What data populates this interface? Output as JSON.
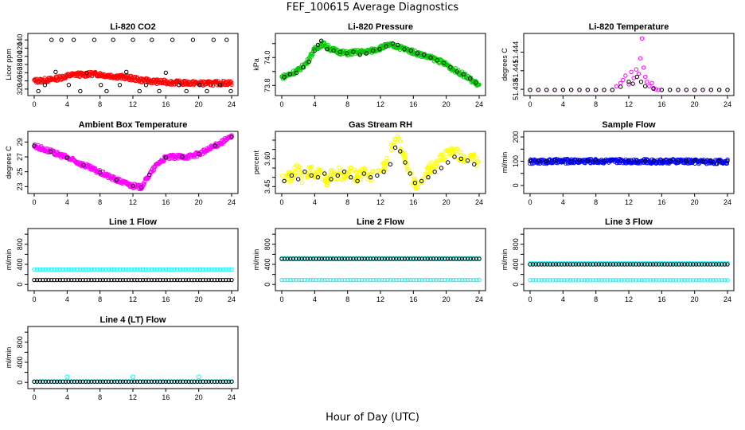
{
  "title": "FEF_100615  Average Diagnostics",
  "xlabel": "Hour of Day (UTC)",
  "chart_data": [
    {
      "type": "scatter",
      "title": "Li-820 CO2",
      "ylabel": "Licor ppm",
      "xlim": [
        0,
        24
      ],
      "ylim": [
        312,
        448
      ],
      "xticks": [
        0,
        4,
        8,
        12,
        16,
        20,
        24
      ],
      "yticks": [
        320,
        340,
        360,
        380,
        400,
        420,
        440
      ],
      "series": [
        {
          "color": "#ff0000",
          "style": "dense",
          "x": [
            0,
            1,
            2,
            3,
            4,
            5,
            6,
            7,
            8,
            9,
            10,
            11,
            12,
            13,
            14,
            15,
            16,
            17,
            18,
            19,
            20,
            21,
            22,
            23,
            24
          ],
          "y": [
            340,
            341,
            343,
            347,
            352,
            356,
            355,
            357,
            356,
            353,
            351,
            349,
            346,
            342,
            340,
            338,
            337,
            336,
            335,
            335,
            334,
            334,
            334,
            335,
            335
          ]
        },
        {
          "color": "#000000",
          "style": "open",
          "x": [
            0.5,
            1.3,
            2.1,
            2.6,
            3.3,
            4.2,
            4.8,
            5.6,
            6.4,
            7.3,
            8.1,
            8.8,
            9.6,
            10.4,
            11.2,
            12.0,
            12.8,
            13.6,
            14.3,
            15.2,
            16.0,
            16.8,
            17.6,
            18.5,
            19.3,
            20.1,
            21.0,
            21.8,
            22.6,
            23.4,
            23.9
          ],
          "y": [
            315,
            330,
            440,
            362,
            440,
            330,
            440,
            315,
            360,
            440,
            330,
            315,
            440,
            330,
            362,
            440,
            315,
            330,
            440,
            315,
            360,
            440,
            330,
            315,
            440,
            330,
            315,
            440,
            330,
            440,
            315
          ]
        }
      ]
    },
    {
      "type": "scatter",
      "title": "Li-820 Pressure",
      "ylabel": "kPa",
      "xlim": [
        0,
        24
      ],
      "ylim": [
        73.75,
        74.15
      ],
      "xticks": [
        0,
        4,
        8,
        12,
        16,
        20,
        24
      ],
      "yticks": [
        73.8,
        73.9,
        74.0,
        74.1
      ],
      "ytick_labels": [
        "73.8",
        "",
        "74.0",
        ""
      ],
      "series": [
        {
          "color": "#00cc00",
          "style": "dense",
          "x": [
            0,
            1,
            2,
            3,
            4,
            5,
            6,
            7,
            8,
            9,
            10,
            11,
            12,
            13,
            14,
            15,
            16,
            17,
            18,
            19,
            20,
            21,
            22,
            23,
            24
          ],
          "y": [
            73.86,
            73.88,
            73.91,
            73.96,
            74.06,
            74.1,
            74.06,
            74.04,
            74.03,
            74.04,
            74.04,
            74.05,
            74.07,
            74.09,
            74.08,
            74.06,
            74.04,
            74.02,
            74.0,
            73.98,
            73.95,
            73.91,
            73.88,
            73.84,
            73.8
          ]
        },
        {
          "color": "#000000",
          "style": "open",
          "x": [
            0.3,
            1.0,
            1.8,
            2.6,
            3.3,
            4.0,
            4.4,
            4.8,
            5.5,
            6.3,
            7.1,
            7.9,
            8.7,
            9.5,
            10.3,
            11.1,
            11.9,
            12.7,
            13.5,
            14.1,
            14.9,
            15.7,
            16.5,
            17.3,
            18.1,
            18.9,
            19.7,
            20.5,
            21.3,
            22.1,
            22.9,
            23.6
          ],
          "y": [
            73.86,
            73.88,
            73.89,
            73.93,
            73.97,
            74.05,
            74.09,
            74.12,
            74.06,
            74.05,
            74.04,
            74.03,
            74.04,
            74.02,
            74.03,
            74.05,
            74.06,
            74.08,
            74.1,
            74.09,
            74.06,
            74.05,
            74.03,
            74.02,
            74.0,
            73.98,
            73.96,
            73.93,
            73.9,
            73.88,
            73.85,
            73.82
          ]
        }
      ]
    },
    {
      "type": "scatter",
      "title": "Li-820 Temperature",
      "ylabel": "degrees C",
      "xlim": [
        0,
        24
      ],
      "ylim": [
        51.4375,
        51.4465
      ],
      "xticks": [
        0,
        4,
        8,
        12,
        16,
        20,
        24
      ],
      "yticks": [
        51.438,
        51.441,
        51.444
      ],
      "series": [
        {
          "color": "#ff00ff",
          "style": "open",
          "x": [
            0,
            1,
            2,
            3,
            4,
            5,
            6,
            7,
            8,
            9,
            10,
            10.5,
            11,
            11.3,
            11.6,
            12.0,
            12.3,
            12.6,
            12.9,
            13.2,
            13.4,
            13.6,
            13.8,
            14.0,
            14.2,
            14.5,
            14.8,
            15.0,
            15.3,
            15.6,
            16,
            17,
            18,
            19,
            20,
            21,
            22,
            23,
            24
          ],
          "y": [
            51.4379,
            51.4379,
            51.4379,
            51.4379,
            51.4379,
            51.4379,
            51.4379,
            51.4379,
            51.4379,
            51.4379,
            51.4379,
            51.4385,
            51.439,
            51.4395,
            51.4402,
            51.4388,
            51.4408,
            51.4398,
            51.4412,
            51.4405,
            51.443,
            51.4462,
            51.4415,
            51.44,
            51.4392,
            51.4385,
            51.439,
            51.4382,
            51.438,
            51.4379,
            51.4379,
            51.4379,
            51.4379,
            51.4379,
            51.4379,
            51.4379,
            51.4379,
            51.4379,
            51.4379
          ]
        },
        {
          "color": "#000000",
          "style": "open",
          "x": [
            0,
            1,
            2,
            3,
            4,
            5,
            6,
            7,
            8,
            9,
            10,
            11,
            12,
            12.5,
            13,
            13.5,
            14,
            15,
            16,
            17,
            18,
            19,
            20,
            21,
            22,
            23,
            24
          ],
          "y": [
            51.4379,
            51.4379,
            51.4379,
            51.4379,
            51.4379,
            51.4379,
            51.4379,
            51.4379,
            51.4379,
            51.4379,
            51.4379,
            51.4384,
            51.4392,
            51.4389,
            51.44,
            51.4392,
            51.4385,
            51.4381,
            51.4379,
            51.4379,
            51.4379,
            51.4379,
            51.4379,
            51.4379,
            51.4379,
            51.4379,
            51.4379
          ]
        }
      ]
    },
    {
      "type": "scatter",
      "title": "Ambient Box Temperature",
      "ylabel": "degrees C",
      "xlim": [
        0,
        24
      ],
      "ylim": [
        22.5,
        30
      ],
      "xticks": [
        0,
        4,
        8,
        12,
        16,
        20,
        24
      ],
      "yticks": [
        23,
        25,
        27,
        29
      ],
      "series": [
        {
          "color": "#ff00ff",
          "style": "dense",
          "x": [
            0,
            1,
            2,
            3,
            4,
            5,
            6,
            7,
            8,
            9,
            10,
            11,
            12,
            13,
            14,
            15,
            16,
            17,
            18,
            19,
            20,
            21,
            22,
            23,
            24
          ],
          "y": [
            28.5,
            28.1,
            27.7,
            27.3,
            26.9,
            26.4,
            25.9,
            25.4,
            24.9,
            24.4,
            23.9,
            23.5,
            23.1,
            22.9,
            24.6,
            26.1,
            26.9,
            27.0,
            27.0,
            27.1,
            27.4,
            27.9,
            28.5,
            29.1,
            29.7
          ]
        },
        {
          "color": "#000000",
          "style": "open",
          "x": [
            0,
            2,
            4,
            6,
            8,
            10,
            12,
            13,
            14,
            16,
            18,
            20,
            22,
            24
          ],
          "y": [
            28.5,
            27.7,
            26.9,
            25.9,
            24.9,
            23.9,
            23.1,
            22.9,
            24.6,
            26.9,
            27.0,
            27.4,
            28.5,
            29.7
          ]
        }
      ]
    },
    {
      "type": "scatter",
      "title": "Gas Stream RH",
      "ylabel": "percent",
      "xlim": [
        0,
        24
      ],
      "ylim": [
        3.43,
        3.73
      ],
      "xticks": [
        0,
        4,
        8,
        12,
        16,
        20,
        24
      ],
      "yticks": [
        3.45,
        3.5,
        3.55,
        3.6,
        3.65,
        3.7
      ],
      "ytick_labels": [
        "3.45",
        "",
        "",
        "3.60",
        "",
        ""
      ],
      "series": [
        {
          "color": "#ffff00",
          "style": "scatter",
          "x": [
            0,
            0.5,
            1,
            1.5,
            2,
            2.5,
            3,
            3.5,
            4,
            4.5,
            5,
            5.5,
            6,
            6.5,
            7,
            7.5,
            8,
            8.5,
            9,
            9.5,
            10,
            10.5,
            11,
            11.5,
            12,
            12.5,
            13,
            13.5,
            14,
            14.5,
            15,
            15.5,
            16,
            16.5,
            17,
            17.5,
            18,
            18.5,
            19,
            19.5,
            20,
            20.5,
            21,
            21.5,
            22,
            22.5,
            23,
            23.5,
            24
          ],
          "y": [
            3.48,
            3.52,
            3.5,
            3.53,
            3.55,
            3.49,
            3.52,
            3.54,
            3.5,
            3.53,
            3.51,
            3.48,
            3.52,
            3.5,
            3.53,
            3.49,
            3.52,
            3.54,
            3.5,
            3.51,
            3.53,
            3.49,
            3.52,
            3.5,
            3.55,
            3.56,
            3.6,
            3.68,
            3.7,
            3.66,
            3.6,
            3.52,
            3.47,
            3.46,
            3.49,
            3.52,
            3.55,
            3.57,
            3.59,
            3.61,
            3.62,
            3.63,
            3.64,
            3.62,
            3.6,
            3.58,
            3.62,
            3.6,
            3.56
          ]
        },
        {
          "color": "#000000",
          "style": "open",
          "x": [
            0.3,
            1.2,
            2.0,
            2.8,
            3.6,
            4.4,
            5.2,
            6.0,
            6.8,
            7.6,
            8.4,
            9.2,
            10.0,
            10.8,
            11.6,
            12.4,
            13.2,
            13.8,
            14.4,
            15.0,
            15.6,
            16.2,
            17.0,
            17.8,
            18.6,
            19.4,
            20.2,
            21.0,
            21.8,
            22.6,
            23.4
          ],
          "y": [
            3.48,
            3.51,
            3.49,
            3.53,
            3.51,
            3.5,
            3.52,
            3.49,
            3.51,
            3.53,
            3.5,
            3.48,
            3.52,
            3.5,
            3.51,
            3.53,
            3.57,
            3.66,
            3.64,
            3.58,
            3.52,
            3.47,
            3.48,
            3.5,
            3.53,
            3.55,
            3.58,
            3.61,
            3.6,
            3.59,
            3.57
          ]
        }
      ]
    },
    {
      "type": "scatter",
      "title": "Sample Flow",
      "ylabel": "ml/min",
      "xlim": [
        0,
        24
      ],
      "ylim": [
        -20,
        210
      ],
      "xticks": [
        0,
        4,
        8,
        12,
        16,
        20,
        24
      ],
      "yticks": [
        0,
        50,
        100,
        150,
        200
      ],
      "ytick_labels": [
        "0",
        "",
        "100",
        "",
        "200"
      ],
      "series": [
        {
          "color": "#0000ff",
          "style": "dense",
          "x": [
            0,
            2,
            4,
            6,
            8,
            10,
            12,
            14,
            16,
            18,
            20,
            22,
            24
          ],
          "y": [
            98,
            99,
            100,
            101,
            101,
            100,
            101,
            100,
            99,
            100,
            99,
            98,
            98
          ]
        },
        {
          "color": "#000000",
          "style": "open",
          "x": [
            0,
            1,
            2,
            3,
            4,
            5,
            6,
            7,
            8,
            9,
            10,
            11,
            12,
            13,
            14,
            15,
            16,
            17,
            18,
            19,
            20,
            21,
            22,
            23,
            24
          ],
          "y": [
            101,
            102,
            101,
            102,
            103,
            102,
            104,
            102,
            103,
            102,
            104,
            103,
            104,
            103,
            102,
            103,
            102,
            101,
            102,
            101,
            102,
            101,
            101,
            100,
            101
          ]
        }
      ]
    },
    {
      "type": "scatter",
      "title": "Line 1 Flow",
      "ylabel": "ml/min",
      "xlim": [
        0,
        24
      ],
      "ylim": [
        -60,
        1050
      ],
      "xticks": [
        0,
        4,
        8,
        12,
        16,
        20,
        24
      ],
      "yticks": [
        0,
        200,
        400,
        600,
        800,
        1000
      ],
      "ytick_labels": [
        "0",
        "",
        "400",
        "",
        "800",
        ""
      ],
      "series": [
        {
          "color": "#00ffff",
          "style": "line-open",
          "level": 300,
          "bumps": []
        },
        {
          "color": "#000000",
          "style": "line-open",
          "level": 90,
          "bumps": []
        }
      ]
    },
    {
      "type": "scatter",
      "title": "Line 2 Flow",
      "ylabel": "ml/min",
      "xlim": [
        0,
        24
      ],
      "ylim": [
        -60,
        1050
      ],
      "xticks": [
        0,
        4,
        8,
        12,
        16,
        20,
        24
      ],
      "yticks": [
        0,
        200,
        400,
        600,
        800,
        1000
      ],
      "ytick_labels": [
        "0",
        "",
        "400",
        "",
        "800",
        ""
      ],
      "series": [
        {
          "color": "#00ffff",
          "style": "line-open",
          "level": 520,
          "bumps": []
        },
        {
          "color": "#00ffff",
          "style": "line-open",
          "level": 90,
          "bumps": []
        },
        {
          "color": "#000000",
          "style": "line-open",
          "level": 510,
          "bumps": []
        }
      ]
    },
    {
      "type": "scatter",
      "title": "Line 3 Flow",
      "ylabel": "ml/min",
      "xlim": [
        0,
        24
      ],
      "ylim": [
        -60,
        1050
      ],
      "xticks": [
        0,
        4,
        8,
        12,
        16,
        20,
        24
      ],
      "yticks": [
        0,
        200,
        400,
        600,
        800,
        1000
      ],
      "ytick_labels": [
        "0",
        "",
        "400",
        "",
        "800",
        ""
      ],
      "series": [
        {
          "color": "#00ffff",
          "style": "line-open",
          "level": 420,
          "bumps": []
        },
        {
          "color": "#00ffff",
          "style": "line-open",
          "level": 85,
          "bumps": []
        },
        {
          "color": "#000000",
          "style": "line-open",
          "level": 400,
          "bumps": []
        }
      ]
    },
    {
      "type": "scatter",
      "title": "Line 4 (LT) Flow",
      "ylabel": "ml/min",
      "xlim": [
        0,
        24
      ],
      "ylim": [
        -60,
        1050
      ],
      "xticks": [
        0,
        4,
        8,
        12,
        16,
        20,
        24
      ],
      "yticks": [
        0,
        200,
        400,
        600,
        800,
        1000
      ],
      "ytick_labels": [
        "0",
        "",
        "400",
        "",
        "800",
        ""
      ],
      "series": [
        {
          "color": "#00ffff",
          "style": "line-open",
          "level": 20,
          "bumps": [
            4,
            12,
            20
          ],
          "bump_level": 110
        },
        {
          "color": "#000000",
          "style": "line-open",
          "level": 15,
          "bumps": []
        }
      ]
    }
  ]
}
